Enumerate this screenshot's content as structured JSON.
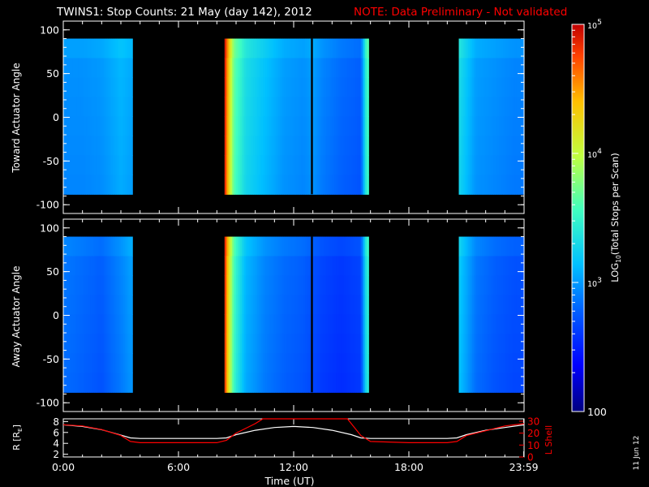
{
  "header": {
    "title": "TWINS1: Stop Counts: 21 May (day 142), 2012",
    "note": "NOTE: Data Preliminary - Not validated"
  },
  "footer": {
    "datestamp": "11 Jun 12"
  },
  "colors": {
    "background": "#000000",
    "axes": "#ffffff",
    "note": "#ff0000",
    "r_line": "#ffffff",
    "l_line": "#ff0000",
    "colormap": [
      "#000080",
      "#0000ff",
      "#0060ff",
      "#00c0ff",
      "#40ffc0",
      "#c0ff40",
      "#ffc000",
      "#ff4000",
      "#c00000"
    ]
  },
  "chart_data": [
    {
      "type": "heatmap",
      "panel": "toward",
      "ylabel": "Toward Actuator Angle",
      "xlim_hours": [
        0,
        24
      ],
      "ylim": [
        -110,
        110
      ],
      "yticks": [
        100,
        50,
        0,
        -50,
        -100
      ],
      "data_y_range": [
        -88,
        90
      ],
      "data_segments_hours": [
        [
          0.0,
          3.6
        ],
        [
          8.4,
          15.9
        ],
        [
          20.6,
          24.0
        ]
      ],
      "gaps_hours": [
        [
          3.6,
          8.4
        ],
        [
          12.9,
          13.0
        ],
        [
          15.9,
          20.6
        ]
      ],
      "time_columns_hours": [
        0,
        1,
        2,
        3,
        3.5,
        8.4,
        8.6,
        8.9,
        9.5,
        10.5,
        11.5,
        12.5,
        13.0,
        13.5,
        14.5,
        15.5,
        15.8,
        20.6,
        21.5,
        22.5,
        23.5
      ],
      "log_counts": [
        2.95,
        2.95,
        2.98,
        3.1,
        3.05,
        4.9,
        4.2,
        3.6,
        3.3,
        3.15,
        3.0,
        2.95,
        3.0,
        2.9,
        2.8,
        2.75,
        3.5,
        3.3,
        3.0,
        2.95,
        2.9
      ]
    },
    {
      "type": "heatmap",
      "panel": "away",
      "ylabel": "Away Actuator Angle",
      "xlim_hours": [
        0,
        24
      ],
      "ylim": [
        -110,
        110
      ],
      "yticks": [
        100,
        50,
        0,
        -50,
        -100
      ],
      "data_y_range": [
        -88,
        90
      ],
      "data_segments_hours": [
        [
          0.0,
          3.6
        ],
        [
          8.4,
          15.9
        ],
        [
          20.6,
          24.0
        ]
      ],
      "gaps_hours": [
        [
          3.6,
          8.4
        ],
        [
          12.9,
          13.0
        ],
        [
          15.9,
          20.6
        ]
      ],
      "time_columns_hours": [
        0,
        1,
        2,
        3,
        3.5,
        8.4,
        8.6,
        8.9,
        9.5,
        10.5,
        11.5,
        12.5,
        13.0,
        13.5,
        14.5,
        15.5,
        15.8,
        20.6,
        21.5,
        22.5,
        23.5
      ],
      "log_counts": [
        2.85,
        2.8,
        2.75,
        2.9,
        3.0,
        4.8,
        4.1,
        3.5,
        3.1,
        2.9,
        2.8,
        2.75,
        2.7,
        2.65,
        2.6,
        2.65,
        3.4,
        3.2,
        2.85,
        2.75,
        2.7
      ]
    },
    {
      "type": "line",
      "panel": "ephemeris",
      "xlabel": "Time (UT)",
      "xticks_hours": [
        0,
        6,
        12,
        18,
        23.983
      ],
      "xtick_labels": [
        "0:00",
        "6:00",
        "12:00",
        "18:00",
        "23:59"
      ],
      "ylabel_left": "R [Rₑ]",
      "ylabel_left_main": "R [R",
      "ylabel_left_sub": "E",
      "ylabel_left_end": "]",
      "ylim_left": [
        1.5,
        8.5
      ],
      "yticks_left": [
        2,
        4,
        6,
        8
      ],
      "ylabel_right": "L Shell",
      "ylim_right": [
        0,
        32
      ],
      "yticks_right": [
        0,
        10,
        20,
        30
      ],
      "series": [
        {
          "axis": "left",
          "x": [
            0,
            1,
            2,
            3,
            3.5,
            4,
            6,
            8,
            8.5,
            9,
            10,
            11,
            12,
            13,
            14,
            15,
            15.5,
            16,
            18,
            20,
            20.5,
            21,
            22,
            23,
            24
          ],
          "y": [
            7.4,
            7.1,
            6.5,
            5.5,
            5.0,
            4.9,
            4.9,
            4.9,
            5.0,
            5.6,
            6.4,
            6.9,
            7.1,
            6.9,
            6.4,
            5.6,
            5.0,
            4.9,
            4.9,
            4.9,
            5.0,
            5.6,
            6.4,
            6.9,
            7.4
          ]
        },
        {
          "axis": "right",
          "x": [
            0,
            1,
            2,
            3,
            3.5,
            4,
            6,
            8,
            8.5,
            9,
            10,
            10.4,
            10.5,
            14.7,
            14.8,
            15,
            15.5,
            16,
            18,
            20,
            20.5,
            21,
            22,
            23,
            24
          ],
          "y": [
            27,
            26,
            23,
            18,
            13,
            12,
            12,
            12,
            14,
            20,
            28,
            32,
            32,
            32,
            32,
            28,
            18,
            13,
            12,
            12,
            13,
            18,
            22,
            26,
            28
          ]
        }
      ]
    },
    {
      "type": "colorbar",
      "label": "LOG10(Total Stops per Scan)",
      "label_main": "LOG",
      "label_sub": "10",
      "label_rest": "(Total Stops per Scan)",
      "scale": "log",
      "range": [
        100,
        100000
      ],
      "ticks": [
        {
          "value": 100,
          "base": "100",
          "exp": ""
        },
        {
          "value": 1000,
          "base": "10",
          "exp": "3"
        },
        {
          "value": 10000,
          "base": "10",
          "exp": "4"
        },
        {
          "value": 100000,
          "base": "10",
          "exp": "5"
        }
      ]
    }
  ]
}
